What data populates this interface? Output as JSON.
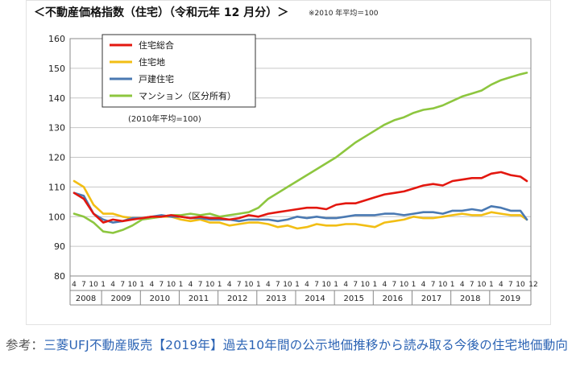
{
  "chart_data": {
    "type": "line",
    "title": "＜不動産価格指数（住宅）（令和元年 12 月分）＞",
    "note": "※2010 年平均＝100",
    "base_note": "(2010年平均=100)",
    "ylim": [
      80,
      160
    ],
    "yticks": [
      "80",
      "90",
      "100",
      "110",
      "120",
      "130",
      "140",
      "150",
      "160"
    ],
    "month_ticks": [
      "4",
      "7",
      "10",
      "1"
    ],
    "years": [
      "2008",
      "2009",
      "2010",
      "2011",
      "2012",
      "2013",
      "2014",
      "2015",
      "2016",
      "2017",
      "2018",
      "2019"
    ],
    "x_end_label": "12",
    "x": [
      "2008-04",
      "2008-07",
      "2008-10",
      "2009-01",
      "2009-04",
      "2009-07",
      "2009-10",
      "2010-01",
      "2010-04",
      "2010-07",
      "2010-10",
      "2011-01",
      "2011-04",
      "2011-07",
      "2011-10",
      "2012-01",
      "2012-04",
      "2012-07",
      "2012-10",
      "2013-01",
      "2013-04",
      "2013-07",
      "2013-10",
      "2014-01",
      "2014-04",
      "2014-07",
      "2014-10",
      "2015-01",
      "2015-04",
      "2015-07",
      "2015-10",
      "2016-01",
      "2016-04",
      "2016-07",
      "2016-10",
      "2017-01",
      "2017-04",
      "2017-07",
      "2017-10",
      "2018-01",
      "2018-04",
      "2018-07",
      "2018-10",
      "2019-01",
      "2019-04",
      "2019-07",
      "2019-10",
      "2019-12"
    ],
    "series": [
      {
        "name": "住宅総合",
        "color": "#e3170f",
        "values": [
          108,
          106,
          101,
          98,
          99,
          98.5,
          99,
          99.5,
          100,
          100,
          100.5,
          100,
          99.5,
          100,
          99.5,
          99.5,
          99,
          99.5,
          100.5,
          100,
          101,
          101.5,
          102,
          102.5,
          103,
          103,
          102.5,
          104,
          104.5,
          104.5,
          105.5,
          106.5,
          107.5,
          108,
          108.5,
          109.5,
          110.5,
          111,
          110.5,
          112,
          112.5,
          113,
          113,
          114.5,
          115,
          114,
          113.5,
          112
        ]
      },
      {
        "name": "住宅地",
        "color": "#f2be14",
        "values": [
          112,
          110,
          104,
          101,
          101,
          100,
          99.5,
          99.5,
          100,
          100,
          100,
          99,
          98.5,
          99,
          98,
          98,
          97,
          97.5,
          98,
          98,
          97.5,
          96.5,
          97,
          96,
          96.5,
          97.5,
          97,
          97,
          97.5,
          97.5,
          97,
          96.5,
          98,
          98.5,
          99,
          100,
          99.5,
          99.5,
          100,
          100.5,
          101,
          100.5,
          100.5,
          101.5,
          101,
          100.5,
          100.5,
          99
        ]
      },
      {
        "name": "戸建住宅",
        "color": "#4a79b2",
        "values": [
          108,
          107,
          101,
          99,
          98,
          98.5,
          99.5,
          99.5,
          100,
          100.5,
          100,
          100,
          99.5,
          99.5,
          99,
          99,
          99,
          98.5,
          99,
          99,
          99,
          98.5,
          99,
          100,
          99.5,
          100,
          99.5,
          99.5,
          100,
          100.5,
          100.5,
          100.5,
          101,
          101,
          100.5,
          101,
          101.5,
          101.5,
          101,
          102,
          102,
          102.5,
          102,
          103.5,
          103,
          102,
          102,
          99
        ]
      },
      {
        "name": "マンション（区分所有）",
        "color": "#8dc63f",
        "values": [
          101,
          100,
          98,
          95,
          94.5,
          95.5,
          97,
          99,
          99.5,
          100,
          100.5,
          100.5,
          101,
          100.5,
          101,
          100,
          100.5,
          101,
          101.5,
          103,
          106,
          108,
          110,
          112,
          114,
          116,
          118,
          120,
          122.5,
          125,
          127,
          129,
          131,
          132.5,
          133.5,
          135,
          136,
          136.5,
          137.5,
          139,
          140.5,
          141.5,
          142.5,
          144.5,
          146,
          147,
          148,
          148.5
        ]
      }
    ]
  },
  "caption": {
    "prefix": "参考：",
    "link": "三菱UFJ不動産販売【2019年】過去10年間の公示地価推移から読み取る今後の住宅地価動向"
  }
}
